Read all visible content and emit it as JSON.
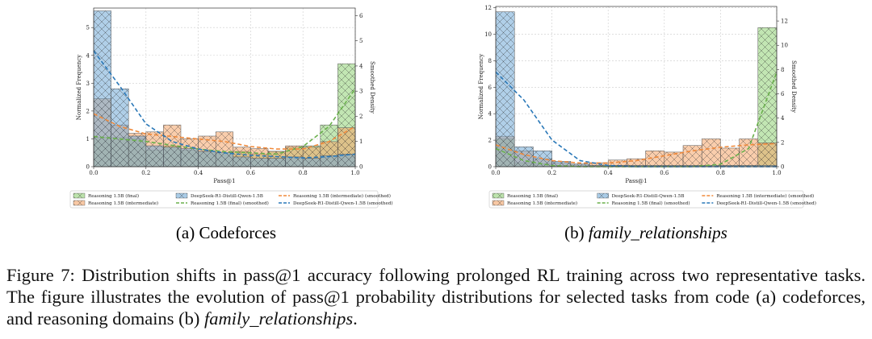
{
  "chart_data": [
    {
      "type": "histogram",
      "xlabel": "Pass@1",
      "ylabel": "Normalized Frequency",
      "y2label": "Smoothed Density",
      "bins": [
        0,
        0.0667,
        0.1333,
        0.2,
        0.2667,
        0.3333,
        0.4,
        0.4667,
        0.5333,
        0.6,
        0.6667,
        0.7333,
        0.8,
        0.8667,
        0.9333,
        1
      ],
      "xlim": [
        0,
        1
      ],
      "ylim": [
        0,
        5.7
      ],
      "y2lim": [
        0,
        6.3
      ],
      "xticks": [
        {
          "value": 0,
          "label": "0.0"
        },
        {
          "value": 0.2,
          "label": "0.2"
        },
        {
          "value": 0.4,
          "label": "0.4"
        },
        {
          "value": 0.6,
          "label": "0.6"
        },
        {
          "value": 0.8,
          "label": "0.8"
        },
        {
          "value": 1,
          "label": "1.0"
        }
      ],
      "yticks": [
        0,
        1,
        2,
        3,
        4,
        5
      ],
      "y2ticks": [
        0,
        1,
        2,
        3,
        4,
        5,
        6
      ],
      "grid": true,
      "series": [
        {
          "name": "Reasoning 1.5B (final)",
          "color": "#8fd175",
          "hatch": "x",
          "values": [
            1.05,
            1.05,
            1.0,
            0.6,
            0.75,
            0.6,
            0.55,
            0.5,
            0.55,
            0.45,
            0.55,
            0.7,
            0.75,
            1.5,
            3.7
          ]
        },
        {
          "name": "Reasoning 1.5B (intermediate)",
          "color": "#f4a468",
          "hatch": "x",
          "values": [
            2.45,
            1.5,
            1.2,
            1.25,
            1.5,
            1.0,
            1.1,
            1.25,
            0.7,
            0.65,
            0.55,
            0.75,
            0.7,
            0.9,
            1.4
          ]
        },
        {
          "name": "DeepSeek-R1-Distill-Qwen-1.5B",
          "color": "#6fa8d6",
          "hatch": "x",
          "values": [
            5.6,
            2.8,
            1.1,
            0.75,
            0.7,
            0.65,
            0.55,
            0.5,
            0.35,
            0.3,
            0.3,
            0.35,
            0.3,
            0.4,
            0.45
          ]
        },
        {
          "name": "Reasoning 1.5B (final) (smoothed)",
          "color": "#6ab04c",
          "style": "dashed",
          "axis": "y2",
          "x": [
            0,
            0.1,
            0.2,
            0.3,
            0.4,
            0.5,
            0.6,
            0.7,
            0.8,
            0.9,
            1
          ],
          "values": [
            1.2,
            1.1,
            1.0,
            0.85,
            0.7,
            0.6,
            0.55,
            0.5,
            0.8,
            1.6,
            3.1
          ]
        },
        {
          "name": "Reasoning 1.5B (intermediate) (smoothed)",
          "color": "#f08a3c",
          "style": "dashed",
          "axis": "y2",
          "x": [
            0,
            0.1,
            0.2,
            0.3,
            0.4,
            0.5,
            0.6,
            0.7,
            0.8,
            0.9,
            1
          ],
          "values": [
            2.1,
            1.6,
            1.3,
            1.2,
            1.1,
            1.0,
            0.8,
            0.7,
            0.7,
            1.0,
            1.6
          ]
        },
        {
          "name": "DeepSeek-R1-Distill-Qwen-1.5B (smoothed)",
          "color": "#2a78b8",
          "style": "dashed",
          "axis": "y2",
          "x": [
            0,
            0.1,
            0.2,
            0.3,
            0.4,
            0.5,
            0.6,
            0.7,
            0.8,
            0.9,
            1
          ],
          "values": [
            4.6,
            3.2,
            1.7,
            1.0,
            0.7,
            0.55,
            0.45,
            0.4,
            0.35,
            0.4,
            0.5
          ]
        }
      ]
    },
    {
      "type": "histogram",
      "xlabel": "Pass@1",
      "ylabel": "Normalized Frequency",
      "y2label": "Smoothed Density",
      "bins": [
        0,
        0.0667,
        0.1333,
        0.2,
        0.2667,
        0.3333,
        0.4,
        0.4667,
        0.5333,
        0.6,
        0.6667,
        0.7333,
        0.8,
        0.8667,
        0.9333,
        1
      ],
      "xlim": [
        0,
        1
      ],
      "ylim": [
        0,
        12.1
      ],
      "y2lim": [
        0,
        13.2
      ],
      "xticks": [
        {
          "value": 0,
          "label": "0.0"
        },
        {
          "value": 0.2,
          "label": "0.2"
        },
        {
          "value": 0.4,
          "label": "0.4"
        },
        {
          "value": 0.6,
          "label": "0.6"
        },
        {
          "value": 0.8,
          "label": "0.8"
        },
        {
          "value": 1,
          "label": "1.0"
        }
      ],
      "yticks": [
        0,
        2,
        4,
        6,
        8,
        10,
        12
      ],
      "y2ticks": [
        0,
        2,
        4,
        6,
        8,
        10,
        12
      ],
      "grid": true,
      "series": [
        {
          "name": "Reasoning 1.5B (final)",
          "color": "#8fd175",
          "hatch": "x",
          "values": [
            2.1,
            0.3,
            0.2,
            0.1,
            0.1,
            0.1,
            0.1,
            0.1,
            0.1,
            0.1,
            0.1,
            0.1,
            0.1,
            0.1,
            10.5
          ]
        },
        {
          "name": "Reasoning 1.5B (intermediate)",
          "color": "#f4a468",
          "hatch": "x",
          "values": [
            2.3,
            1.2,
            0.6,
            0.3,
            0.2,
            0.3,
            0.5,
            0.6,
            1.2,
            1.1,
            1.6,
            2.1,
            1.4,
            2.1,
            1.8
          ]
        },
        {
          "name": "DeepSeek-R1-Distill-Qwen-1.5B",
          "color": "#6fa8d6",
          "hatch": "x",
          "values": [
            11.7,
            1.5,
            1.2,
            0.4,
            0.2,
            0.1,
            0.1,
            0.1,
            0.1,
            0.1,
            0.1,
            0.1,
            0.1,
            0.1,
            0.1
          ]
        },
        {
          "name": "Reasoning 1.5B (final) (smoothed)",
          "color": "#6ab04c",
          "style": "dashed",
          "axis": "y2",
          "x": [
            0,
            0.1,
            0.2,
            0.3,
            0.4,
            0.5,
            0.6,
            0.7,
            0.8,
            0.9,
            1
          ],
          "values": [
            1.5,
            0.5,
            0.1,
            0,
            0,
            0,
            0,
            0,
            0.2,
            1.5,
            7.8
          ]
        },
        {
          "name": "Reasoning 1.5B (intermediate) (smoothed)",
          "color": "#f08a3c",
          "style": "dashed",
          "axis": "y2",
          "x": [
            0,
            0.1,
            0.2,
            0.3,
            0.4,
            0.5,
            0.6,
            0.7,
            0.8,
            0.9,
            1
          ],
          "values": [
            1.8,
            1.0,
            0.5,
            0.3,
            0.3,
            0.5,
            0.9,
            1.3,
            1.6,
            1.8,
            1.9
          ]
        },
        {
          "name": "DeepSeek-R1-Distill-Qwen-1.5B (smoothed)",
          "color": "#2a78b8",
          "style": "dashed",
          "axis": "y2",
          "x": [
            0,
            0.1,
            0.2,
            0.3,
            0.4,
            0.5,
            0.6,
            0.7,
            0.8,
            0.9,
            1
          ],
          "values": [
            7.8,
            5.5,
            2.2,
            0.5,
            0.1,
            0,
            0,
            0,
            0,
            0,
            0
          ]
        }
      ]
    }
  ],
  "subcaptions": [
    {
      "label": "(a)",
      "text": "Codeforces"
    },
    {
      "label": "(b)",
      "text": "family_relationships"
    }
  ],
  "caption": {
    "text": "Figure 7: Distribution shifts in pass@1 accuracy following prolonged RL training across two representative tasks. The figure illustrates the evolution of pass@1 probability distributions for selected tasks from code (a) codeforces, and reasoning domains (b) ",
    "italic": "family_relationships",
    "end": "."
  }
}
